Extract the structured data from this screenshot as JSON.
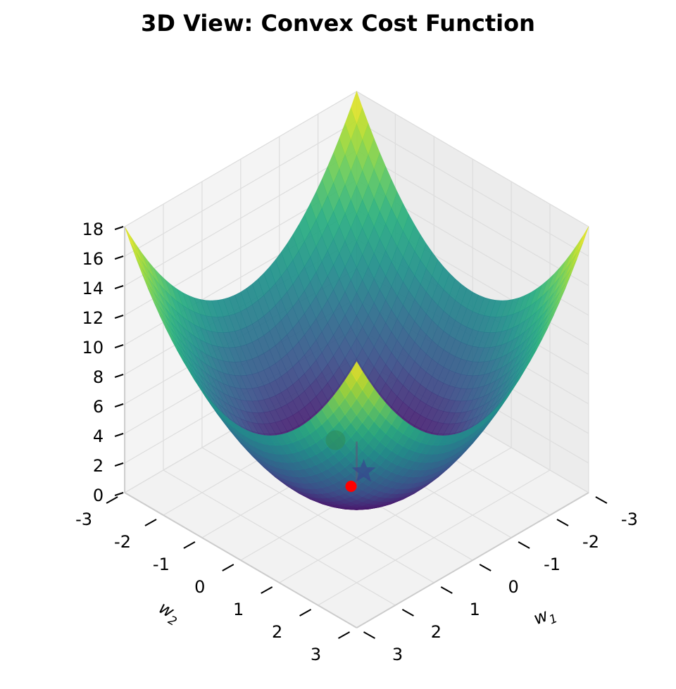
{
  "chart_data": {
    "type": "surface3d",
    "title": "3D View: Convex Cost Function",
    "function": "w1^2 + w2^2",
    "colormap": "viridis",
    "x_axis": {
      "label": "w1",
      "range": [
        -3,
        3
      ],
      "ticks": [
        -3,
        -2,
        -1,
        0,
        1,
        2,
        3
      ]
    },
    "y_axis": {
      "label": "w2",
      "range": [
        -3,
        3
      ],
      "ticks": [
        -3,
        -2,
        -1,
        0,
        1,
        2,
        3
      ]
    },
    "z_axis": {
      "range": [
        0,
        18
      ],
      "ticks": [
        0,
        2,
        4,
        6,
        8,
        10,
        12,
        14,
        16,
        18
      ]
    },
    "grid": true,
    "path": {
      "start": {
        "w1": 0.3,
        "w2": 0.3,
        "z": 0.18
      },
      "optimum": {
        "w1": 0,
        "w2": 0,
        "z": 0
      },
      "markers": [
        "start-circle",
        "optimum-star",
        "minimum-point"
      ],
      "colors": {
        "start": "#2e8b57",
        "star": "#3b3b8f",
        "min_point": "#ff0000"
      }
    }
  }
}
